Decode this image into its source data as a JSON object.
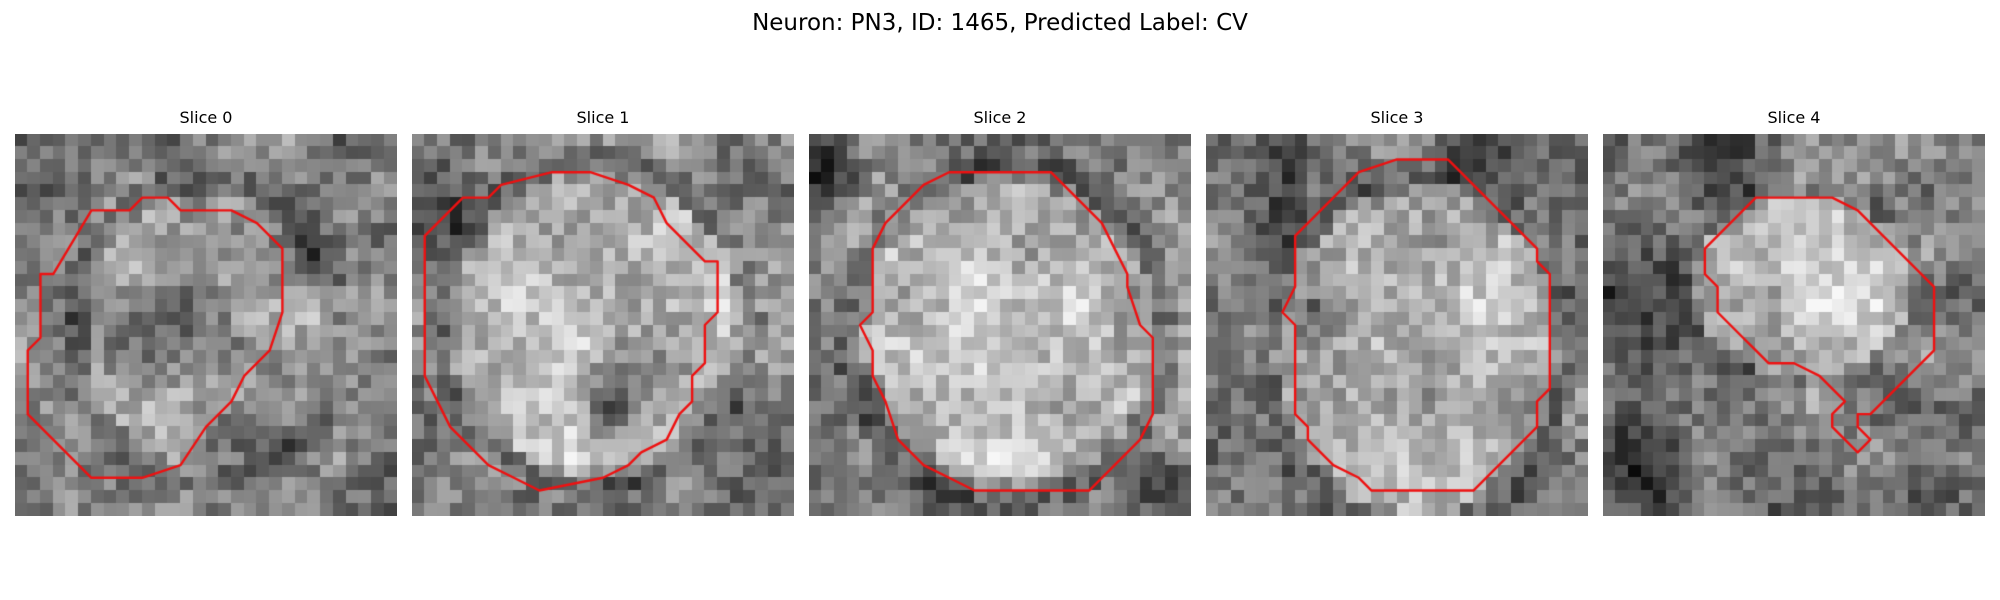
{
  "figure": {
    "title": "Neuron: PN3, ID: 1465, Predicted Label: CV"
  },
  "panels": [
    {
      "title": "Slice 0"
    },
    {
      "title": "Slice 1"
    },
    {
      "title": "Slice 2"
    },
    {
      "title": "Slice 3"
    },
    {
      "title": "Slice 4"
    }
  ],
  "colors": {
    "contour": "#ee1111",
    "background": "#ffffff"
  }
}
